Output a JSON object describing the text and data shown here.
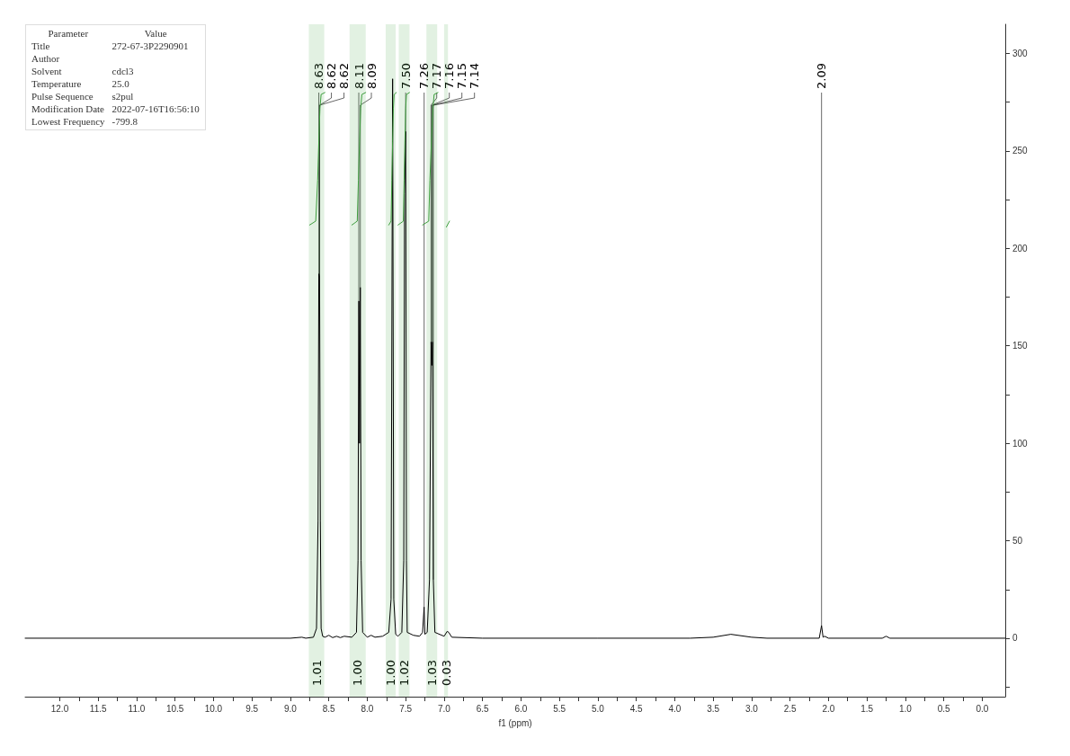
{
  "chart_data": {
    "type": "line",
    "xlabel": "f1 (ppm)",
    "xlim": [
      12.45,
      -0.3
    ],
    "xticks": [
      {
        "value": 12,
        "label": "12.0"
      },
      {
        "value": 11.75,
        "label": null
      },
      {
        "value": 11.5,
        "label": "11.5"
      },
      {
        "value": 11.25,
        "label": null
      },
      {
        "value": 11,
        "label": "11.0"
      },
      {
        "value": 10.75,
        "label": null
      },
      {
        "value": 10.5,
        "label": "10.5"
      },
      {
        "value": 10.25,
        "label": null
      },
      {
        "value": 10,
        "label": "10.0"
      },
      {
        "value": 9.75,
        "label": null
      },
      {
        "value": 9.5,
        "label": "9.5"
      },
      {
        "value": 9.25,
        "label": null
      },
      {
        "value": 9,
        "label": "9.0"
      },
      {
        "value": 8.75,
        "label": null
      },
      {
        "value": 8.5,
        "label": "8.5"
      },
      {
        "value": 8.25,
        "label": null
      },
      {
        "value": 8,
        "label": "8.0"
      },
      {
        "value": 7.75,
        "label": null
      },
      {
        "value": 7.5,
        "label": "7.5"
      },
      {
        "value": 7.25,
        "label": null
      },
      {
        "value": 7,
        "label": "7.0"
      },
      {
        "value": 6.75,
        "label": null
      },
      {
        "value": 6.5,
        "label": "6.5"
      },
      {
        "value": 6.25,
        "label": null
      },
      {
        "value": 6,
        "label": "6.0"
      },
      {
        "value": 5.75,
        "label": null
      },
      {
        "value": 5.5,
        "label": "5.5"
      },
      {
        "value": 5.25,
        "label": null
      },
      {
        "value": 5,
        "label": "5.0"
      },
      {
        "value": 4.75,
        "label": null
      },
      {
        "value": 4.5,
        "label": "4.5"
      },
      {
        "value": 4.25,
        "label": null
      },
      {
        "value": 4,
        "label": "4.0"
      },
      {
        "value": 3.75,
        "label": null
      },
      {
        "value": 3.5,
        "label": "3.5"
      },
      {
        "value": 3.25,
        "label": null
      },
      {
        "value": 3,
        "label": "3.0"
      },
      {
        "value": 2.75,
        "label": null
      },
      {
        "value": 2.5,
        "label": "2.5"
      },
      {
        "value": 2.25,
        "label": null
      },
      {
        "value": 2,
        "label": "2.0"
      },
      {
        "value": 1.75,
        "label": null
      },
      {
        "value": 1.5,
        "label": "1.5"
      },
      {
        "value": 1.25,
        "label": null
      },
      {
        "value": 1,
        "label": "1.0"
      },
      {
        "value": 0.75,
        "label": null
      },
      {
        "value": 0.5,
        "label": "0.5"
      },
      {
        "value": 0.25,
        "label": null
      },
      {
        "value": 0,
        "label": "0.0"
      }
    ],
    "ylim": [
      -30,
      315
    ],
    "yticks": [
      {
        "value": -25,
        "label": null
      },
      0,
      {
        "value": 25,
        "label": null
      },
      50,
      {
        "value": 75,
        "label": null
      },
      100,
      {
        "value": 125,
        "label": null
      },
      150,
      {
        "value": 175,
        "label": null
      },
      200,
      {
        "value": 225,
        "label": null
      },
      250,
      {
        "value": 275,
        "label": null
      },
      300
    ],
    "grid": false,
    "marker": "none",
    "line_style": "solid",
    "series": [
      {
        "color": "#000000",
        "x": [
          12.45,
          9.0,
          8.85,
          8.8,
          8.7,
          8.66,
          8.64,
          8.63,
          8.62,
          8.61,
          8.6,
          8.58,
          8.55,
          8.5,
          8.45,
          8.4,
          8.35,
          8.3,
          8.2,
          8.14,
          8.12,
          8.11,
          8.1,
          8.09,
          8.08,
          8.06,
          8.0,
          7.95,
          7.9,
          7.8,
          7.72,
          7.69,
          7.67,
          7.655,
          7.63,
          7.6,
          7.55,
          7.525,
          7.515,
          7.5,
          7.49,
          7.48,
          7.4,
          7.32,
          7.28,
          7.26,
          7.25,
          7.22,
          7.19,
          7.17,
          7.16,
          7.15,
          7.14,
          7.12,
          7.0,
          6.96,
          6.94,
          6.9,
          6.5,
          5.0,
          3.8,
          3.5,
          3.27,
          3.0,
          2.8,
          2.12,
          2.09,
          2.07,
          2.05,
          2.0,
          1.3,
          1.25,
          1.2,
          -0.3
        ],
        "values": [
          0,
          0,
          0.5,
          0,
          0.5,
          5,
          60,
          187,
          185,
          60,
          5,
          1,
          0.5,
          1.5,
          0.3,
          1,
          0.3,
          1,
          0.5,
          3,
          40,
          173,
          100,
          180,
          40,
          3,
          0.5,
          1.5,
          0.5,
          1,
          3,
          20,
          287,
          20,
          2,
          1,
          3,
          40,
          228,
          260,
          40,
          3,
          1.5,
          1,
          3,
          16,
          2,
          3,
          30,
          152,
          140,
          152,
          30,
          3,
          1,
          3.5,
          3,
          0.5,
          0,
          0,
          0,
          0.5,
          2,
          0.5,
          0,
          0,
          6.5,
          0.5,
          1,
          0,
          0,
          1,
          0,
          0
        ]
      },
      {
        "type": "line",
        "color": "#3f9f3f",
        "x": [
          8.75,
          8.67,
          8.645,
          8.63,
          8.615,
          8.6,
          8.55
        ],
        "values": [
          212,
          214,
          235,
          255,
          272,
          279,
          280
        ]
      },
      {
        "type": "line",
        "color": "#3f9f3f",
        "x": [
          8.2,
          8.13,
          8.115,
          8.1,
          8.085,
          8.07,
          8.02
        ],
        "values": [
          212,
          214,
          235,
          255,
          272,
          279,
          280
        ]
      },
      {
        "type": "line",
        "color": "#3f9f3f",
        "x": [
          7.72,
          7.69,
          7.68,
          7.67,
          7.66,
          7.65,
          7.62
        ],
        "values": [
          212,
          214,
          235,
          255,
          272,
          279,
          280
        ]
      },
      {
        "type": "line",
        "color": "#3f9f3f",
        "x": [
          7.6,
          7.53,
          7.52,
          7.51,
          7.5,
          7.49,
          7.45
        ],
        "values": [
          212,
          214,
          235,
          255,
          272,
          279,
          280
        ]
      },
      {
        "type": "line",
        "color": "#3f9f3f",
        "x": [
          7.28,
          7.2,
          7.185,
          7.165,
          7.145,
          7.13,
          7.08
        ],
        "values": [
          212,
          214,
          235,
          255,
          272,
          279,
          280
        ]
      },
      {
        "type": "line",
        "color": "#3f9f3f",
        "x": [
          6.97,
          6.93
        ],
        "values": [
          211,
          214
        ]
      }
    ],
    "annotations": [
      "Parameter",
      "Value",
      "Title",
      "272-67-3P2290901",
      "Author",
      null,
      "Solvent",
      "cdcl3",
      "Temperature",
      "25.0",
      "Pulse Sequence",
      "s2pul",
      "Modification Date",
      "2022-07-16T16:56:10",
      "Lowest Frequency",
      "-799.8",
      {
        "text": "8.63",
        "x": 8.63,
        "y": 187
      },
      {
        "text": "8.62",
        "x": 8.62,
        "y": 185
      },
      {
        "text": "8.62",
        "x": 8.62,
        "y": 185
      },
      {
        "text": "8.11",
        "x": 8.11,
        "y": 173
      },
      {
        "text": "8.09",
        "x": 8.09,
        "y": 180
      },
      {
        "text": "7.50",
        "x": 7.5,
        "y": 260
      },
      {
        "text": "7.26",
        "x": 7.26,
        "y": 16
      },
      {
        "text": "7.17",
        "x": 7.17,
        "y": 152
      },
      {
        "text": "7.16",
        "x": 7.16,
        "y": 140
      },
      {
        "text": "7.15",
        "x": 7.15,
        "y": 152
      },
      {
        "text": "7.14",
        "x": 7.14,
        "y": 30
      },
      {
        "text": "2.09",
        "x": 2.09,
        "y": 6.5
      }
    ],
    "bands": [
      {
        "axis": "x",
        "from": 8.76,
        "to": 8.56,
        "label": "1.01",
        "color": "#3f9f3f"
      },
      {
        "axis": "x",
        "from": 8.23,
        "to": 8.02,
        "label": "1.00",
        "color": "#3f9f3f"
      },
      {
        "axis": "x",
        "from": 7.76,
        "to": 7.63,
        "label": "1.00",
        "color": "#3f9f3f"
      },
      {
        "axis": "x",
        "from": 7.59,
        "to": 7.45,
        "label": "1.02",
        "color": "#3f9f3f"
      },
      {
        "axis": "x",
        "from": 7.23,
        "to": 7.09,
        "label": "1.03",
        "color": "#3f9f3f"
      },
      {
        "axis": "x",
        "from": 7.0,
        "to": 6.95,
        "label": "0.03",
        "color": "#3f9f3f"
      }
    ]
  }
}
